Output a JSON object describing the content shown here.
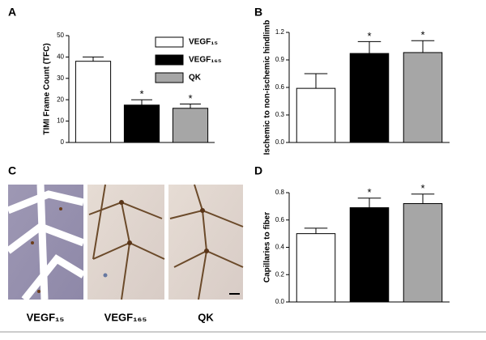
{
  "chart_data": [
    {
      "type": "bar",
      "panel": "A",
      "ylabel": "TIMI Frame Count (TFC)",
      "categories": [
        null,
        null,
        null
      ],
      "values": [
        38,
        17.5,
        16
      ],
      "errors": [
        2,
        2.5,
        2
      ],
      "significance": [
        null,
        "*",
        "*"
      ],
      "colors": [
        "#ffffff",
        "#000000",
        "#a6a6a6"
      ],
      "legend": [
        "VEGF₁₅",
        "VEGF₁₆₅",
        "QK"
      ],
      "ylim": [
        0,
        50
      ],
      "yticks": [
        0,
        10,
        20,
        30,
        40,
        50
      ]
    },
    {
      "type": "bar",
      "panel": "B",
      "ylabel": "Ischemic to non-ischemic hindlimb",
      "categories": [
        null,
        null,
        null
      ],
      "values": [
        0.59,
        0.97,
        0.98
      ],
      "errors": [
        0.16,
        0.13,
        0.13
      ],
      "significance": [
        null,
        "*",
        "*"
      ],
      "colors": [
        "#ffffff",
        "#000000",
        "#a6a6a6"
      ],
      "ylim": [
        0,
        1.2
      ],
      "yticks": [
        {
          "value": 0,
          "label": "0.0"
        },
        0.3,
        0.6,
        0.9,
        1.2
      ]
    },
    {
      "type": "bar",
      "panel": "D",
      "ylabel": "Capillaries to fiber",
      "categories": [
        null,
        null,
        null
      ],
      "values": [
        0.5,
        0.69,
        0.72
      ],
      "errors": [
        0.04,
        0.07,
        0.07
      ],
      "significance": [
        null,
        "*",
        "*"
      ],
      "colors": [
        "#ffffff",
        "#000000",
        "#a6a6a6"
      ],
      "ylim": [
        0,
        0.8
      ],
      "yticks": [
        {
          "value": 0,
          "label": "0.0"
        },
        0.2,
        0.4,
        0.6,
        0.8
      ]
    }
  ],
  "images": {
    "panel": "C",
    "labels": [
      "VEGF₁₅",
      "VEGF₁₆₅",
      "QK"
    ]
  }
}
